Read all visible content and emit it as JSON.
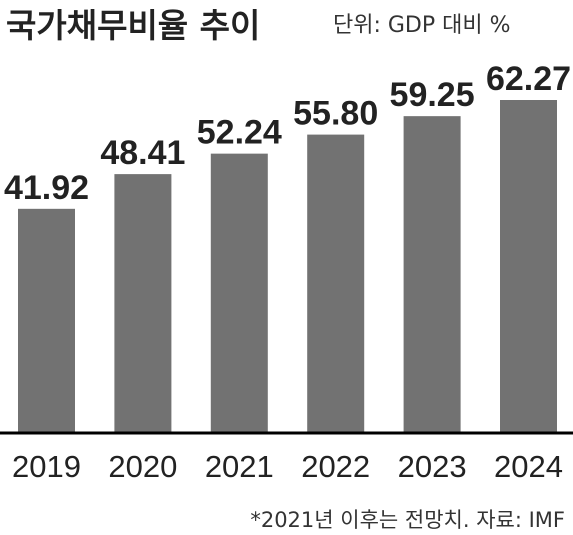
{
  "header": {
    "title": "국가채무비율 추이",
    "unit": "단위: GDP 대비 %"
  },
  "footnote": "*2021년 이후는 전망치. 자료: IMF",
  "colors": {
    "bar": "#727272",
    "text": "#222222",
    "axis": "#000000"
  },
  "chart_data": {
    "type": "bar",
    "title": "국가채무비율 추이",
    "ylabel": "",
    "xlabel": "",
    "categories": [
      "2019",
      "2020",
      "2021",
      "2022",
      "2023",
      "2024"
    ],
    "values": [
      41.92,
      48.41,
      52.24,
      55.8,
      59.25,
      62.27
    ],
    "value_labels": [
      "41.92",
      "48.41",
      "52.24",
      "55.80",
      "59.25",
      "62.27"
    ],
    "ylim": [
      0,
      62.27
    ],
    "grid": false,
    "legend": "none"
  }
}
